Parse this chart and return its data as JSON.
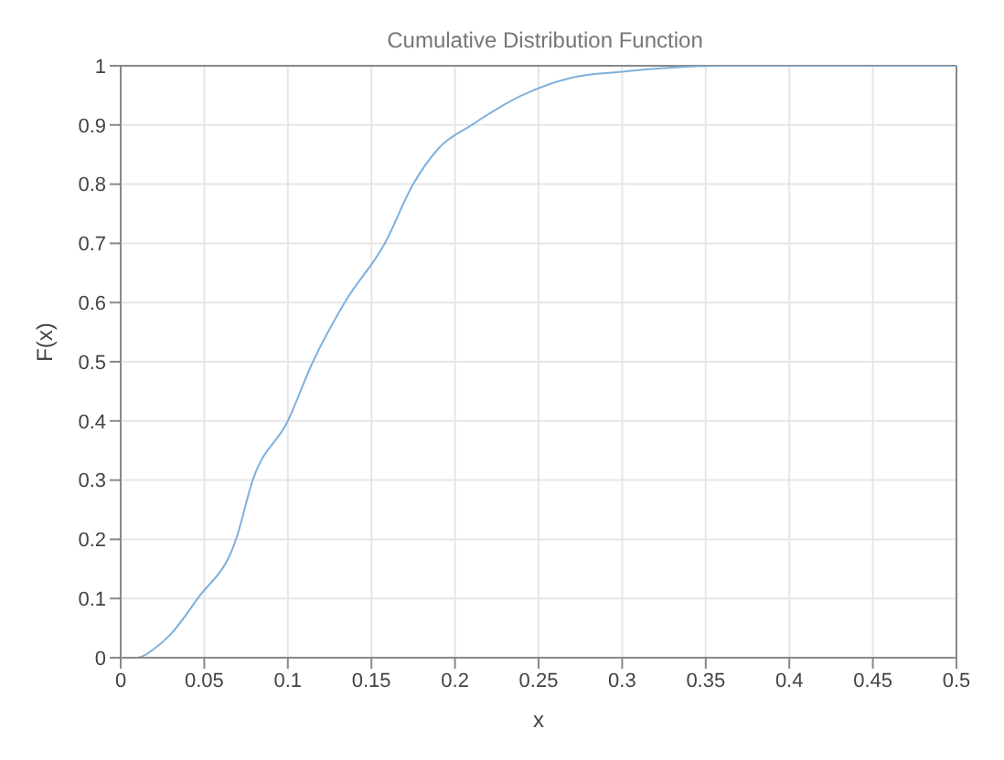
{
  "chart_data": {
    "type": "line",
    "title": "Cumulative Distribution Function",
    "xlabel": "x",
    "ylabel": "F(x)",
    "series": [
      {
        "color": "#7fb0dc",
        "x": [
          0,
          0.01,
          0.02,
          0.03,
          0.046,
          0.069,
          0.079,
          0.1,
          0.115,
          0.134,
          0.158,
          0.175,
          0.19,
          0.21,
          0.24,
          0.27,
          0.3,
          0.33,
          0.36,
          0.4,
          0.45,
          0.5
        ],
        "values": [
          0,
          0,
          0.015,
          0.04,
          0.1,
          0.2,
          0.3,
          0.4,
          0.5,
          0.6,
          0.7,
          0.8,
          0.86,
          0.9,
          0.95,
          0.98,
          0.99,
          0.997,
          1,
          1,
          1,
          1
        ]
      }
    ],
    "xlim": [
      0,
      0.5
    ],
    "xticks": [
      0,
      0.05,
      0.1,
      0.15,
      0.2,
      0.25,
      0.3,
      0.35,
      0.4,
      0.45,
      0.5
    ],
    "ylim": [
      0,
      1
    ],
    "yticks": [
      0,
      0.1,
      0.2,
      0.3,
      0.4,
      0.5,
      0.6,
      0.7,
      0.8,
      0.9,
      1
    ],
    "grid": true,
    "marker": "none",
    "line_style": "solid"
  }
}
